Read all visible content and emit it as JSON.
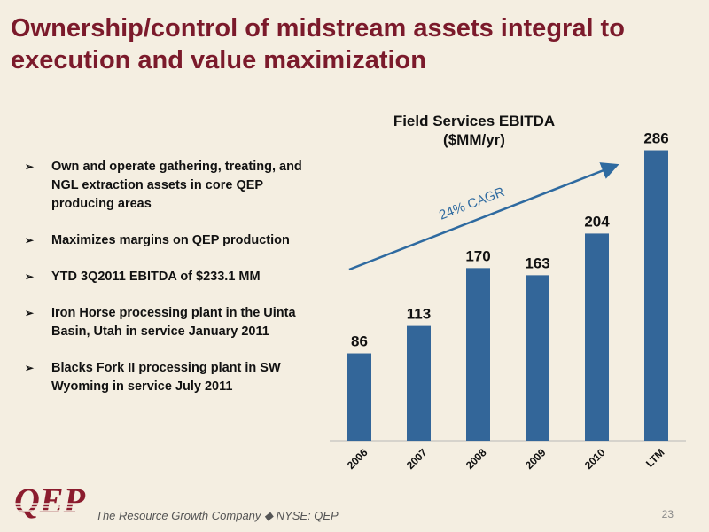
{
  "slide": {
    "title": "Ownership/control of midstream assets integral to execution and value maximization",
    "bullets": [
      "Own and operate gathering, treating, and NGL extraction assets in core QEP producing areas",
      "Maximizes margins on QEP production",
      "YTD 3Q2011 EBITDA of $233.1 MM",
      "Iron Horse processing plant in the Uinta Basin, Utah in service January 2011",
      "Blacks Fork II processing plant in SW Wyoming in service July 2011"
    ],
    "bullet_glyph": "➢",
    "footer": {
      "logo_text": "QEP",
      "tagline": "The Resource Growth Company ◆ NYSE: QEP",
      "page_number": "23"
    },
    "colors": {
      "title": "#7b1a2b",
      "background": "#f4eee1",
      "bar": "#336699",
      "arrow": "#2e6aa0",
      "logo": "#8b1c2e"
    }
  },
  "chart_data": {
    "type": "bar",
    "title_line1": "Field Services EBITDA",
    "title_line2": "($MM/yr)",
    "categories": [
      "2006",
      "2007",
      "2008",
      "2009",
      "2010",
      "LTM"
    ],
    "values": [
      86,
      113,
      170,
      163,
      204,
      286
    ],
    "ylim": [
      0,
      300
    ],
    "grid": false,
    "annotation": "24% CAGR"
  }
}
